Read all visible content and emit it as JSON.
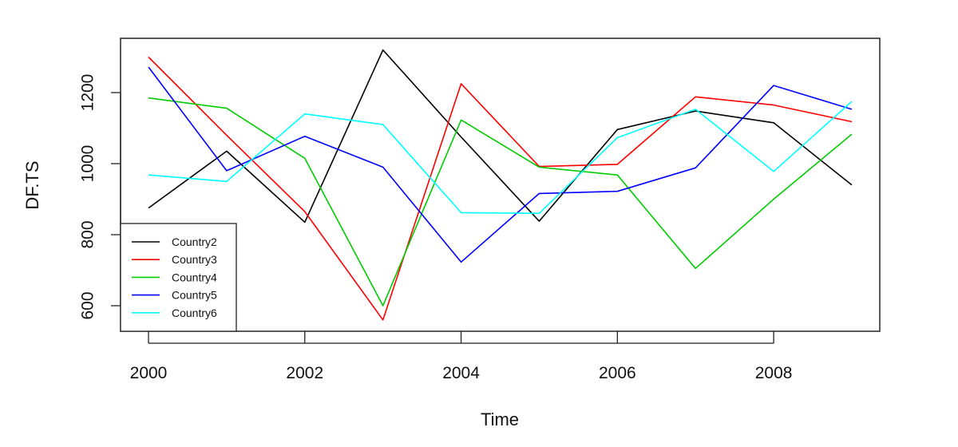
{
  "chart_data": {
    "type": "line",
    "title": "",
    "xlabel": "Time",
    "ylabel": "DF.TS",
    "xlim": [
      2000,
      2009
    ],
    "ylim": [
      545,
      1300
    ],
    "x_ticks": [
      2000,
      2002,
      2004,
      2006,
      2008
    ],
    "y_ticks": [
      600,
      800,
      1000,
      1200
    ],
    "grid": false,
    "legend_position": "bottom-left",
    "x": [
      2000,
      2001,
      2002,
      2003,
      2004,
      2005,
      2006,
      2007,
      2008,
      2009
    ],
    "series": [
      {
        "name": "Country2",
        "color": "#000000",
        "values": [
          875,
          1035,
          835,
          1320,
          1075,
          838,
          1096,
          1148,
          1115,
          940
        ]
      },
      {
        "name": "Country3",
        "color": "#FF0000",
        "values": [
          1300,
          1080,
          865,
          560,
          1225,
          992,
          998,
          1188,
          1165,
          1118
        ]
      },
      {
        "name": "Country4",
        "color": "#00CD00",
        "values": [
          1185,
          1156,
          1015,
          600,
          1123,
          990,
          968,
          705,
          900,
          1083
        ]
      },
      {
        "name": "Country5",
        "color": "#0000FF",
        "values": [
          1272,
          980,
          1077,
          990,
          723,
          916,
          922,
          988,
          1220,
          1153
        ]
      },
      {
        "name": "Country6",
        "color": "#00FFFF",
        "values": [
          968,
          950,
          1140,
          1110,
          862,
          860,
          1073,
          1153,
          978,
          1175
        ]
      }
    ]
  }
}
